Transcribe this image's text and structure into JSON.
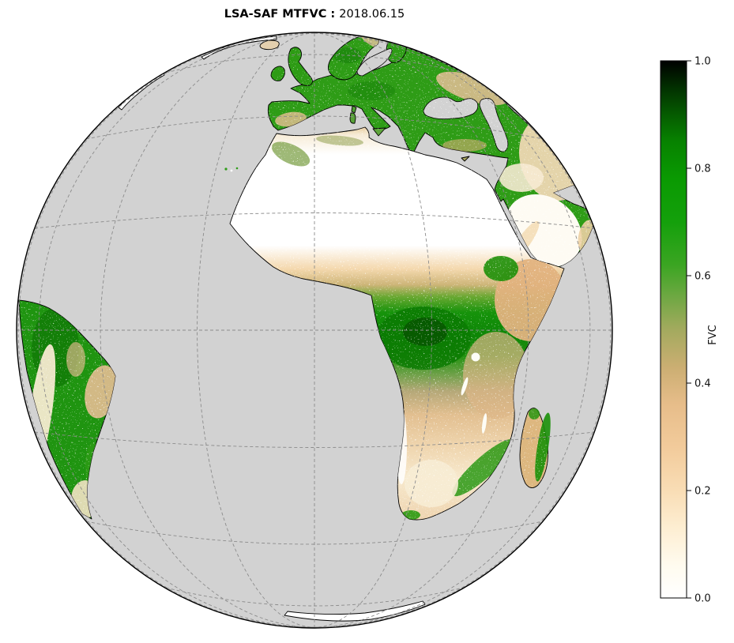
{
  "figure": {
    "title_bold": "LSA-SAF MTFVC :",
    "title_date": "2018.06.15"
  },
  "colorbar": {
    "label": "FVC",
    "min": 0.0,
    "max": 1.0,
    "tick_labels": [
      "0.0",
      "0.2",
      "0.4",
      "0.6",
      "0.8",
      "1.0"
    ],
    "tick_values": [
      0,
      0.2,
      0.4,
      0.6,
      0.8,
      1
    ],
    "colormap": [
      {
        "v": 0.0,
        "c": "#ffffff"
      },
      {
        "v": 0.06,
        "c": "#fffbef"
      },
      {
        "v": 0.13,
        "c": "#fdeed2"
      },
      {
        "v": 0.2,
        "c": "#f9ddb5"
      },
      {
        "v": 0.28,
        "c": "#f2cb9b"
      },
      {
        "v": 0.36,
        "c": "#e7bd8a"
      },
      {
        "v": 0.43,
        "c": "#cbae72"
      },
      {
        "v": 0.5,
        "c": "#a3aa5e"
      },
      {
        "v": 0.56,
        "c": "#6fa843"
      },
      {
        "v": 0.62,
        "c": "#3ba522"
      },
      {
        "v": 0.7,
        "c": "#14a00b"
      },
      {
        "v": 0.78,
        "c": "#0a9a02"
      },
      {
        "v": 0.85,
        "c": "#078200"
      },
      {
        "v": 0.9,
        "c": "#055b00"
      },
      {
        "v": 0.95,
        "c": "#023000"
      },
      {
        "v": 1.0,
        "c": "#000000"
      }
    ]
  },
  "map": {
    "projection": "geostationary full disk",
    "graticule_interval_deg": 20,
    "palette": {
      "ocean": "#d2d2d2",
      "coastline": "#000000",
      "desert_white": "#ffffff",
      "arid_tan": "#e2bb8c",
      "sparse_olive": "#a8a862",
      "vegetated_green": "#25990f",
      "dense_green": "#0a7202",
      "ice_white": "#ffffff"
    },
    "visible_regions": [
      "Europe",
      "Africa",
      "Arabian Peninsula",
      "South America",
      "Madagascar",
      "Iceland",
      "Greenland edge",
      "Antarctica edge"
    ],
    "africa_gradient": [
      {
        "off": 0.0,
        "c": "#e9cfa3"
      },
      {
        "off": 0.02,
        "c": "#f7ecd7"
      },
      {
        "off": 0.07,
        "c": "#ffffff"
      },
      {
        "off": 0.3,
        "c": "#ffffff"
      },
      {
        "off": 0.36,
        "c": "#f4d8ad"
      },
      {
        "off": 0.4,
        "c": "#cdb578"
      },
      {
        "off": 0.43,
        "c": "#6aa832"
      },
      {
        "off": 0.47,
        "c": "#16930b"
      },
      {
        "off": 0.53,
        "c": "#0d8506"
      },
      {
        "off": 0.58,
        "c": "#229210"
      },
      {
        "off": 0.63,
        "c": "#73a14c"
      },
      {
        "off": 0.67,
        "c": "#b5a878"
      },
      {
        "off": 0.73,
        "c": "#e2bf90"
      },
      {
        "off": 0.81,
        "c": "#efd5ae"
      },
      {
        "off": 0.89,
        "c": "#f7e9cd"
      },
      {
        "off": 1.0,
        "c": "#eed3ae"
      }
    ]
  }
}
